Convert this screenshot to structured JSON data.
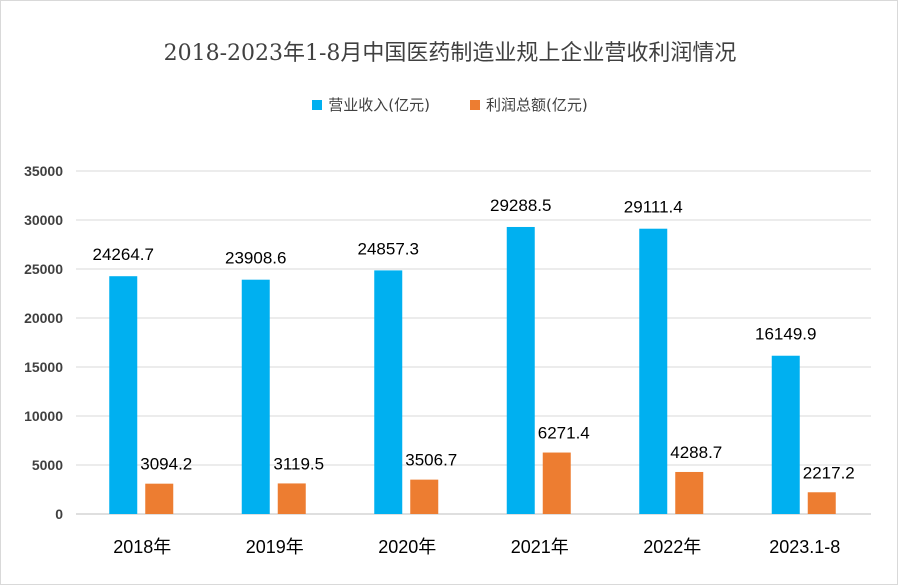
{
  "chart_data": {
    "type": "bar",
    "title": "2018-2023年1-8月中国医药制造业规上企业营收利润情况",
    "categories": [
      "2018年",
      "2019年",
      "2020年",
      "2021年",
      "2022年",
      "2023.1-8"
    ],
    "series": [
      {
        "name": "营业收入(亿元)",
        "color": "#00b0f0",
        "values": [
          24264.7,
          23908.6,
          24857.3,
          29288.5,
          29111.4,
          16149.9
        ]
      },
      {
        "name": "利润总额(亿元)",
        "color": "#ed7d31",
        "values": [
          3094.2,
          3119.5,
          3506.7,
          6271.4,
          4288.7,
          2217.2
        ]
      }
    ],
    "ylim": [
      0,
      35000
    ],
    "yticks": [
      0,
      5000,
      10000,
      15000,
      20000,
      25000,
      30000,
      35000
    ],
    "grid": true,
    "legend": "top",
    "xlabel": "",
    "ylabel": ""
  }
}
